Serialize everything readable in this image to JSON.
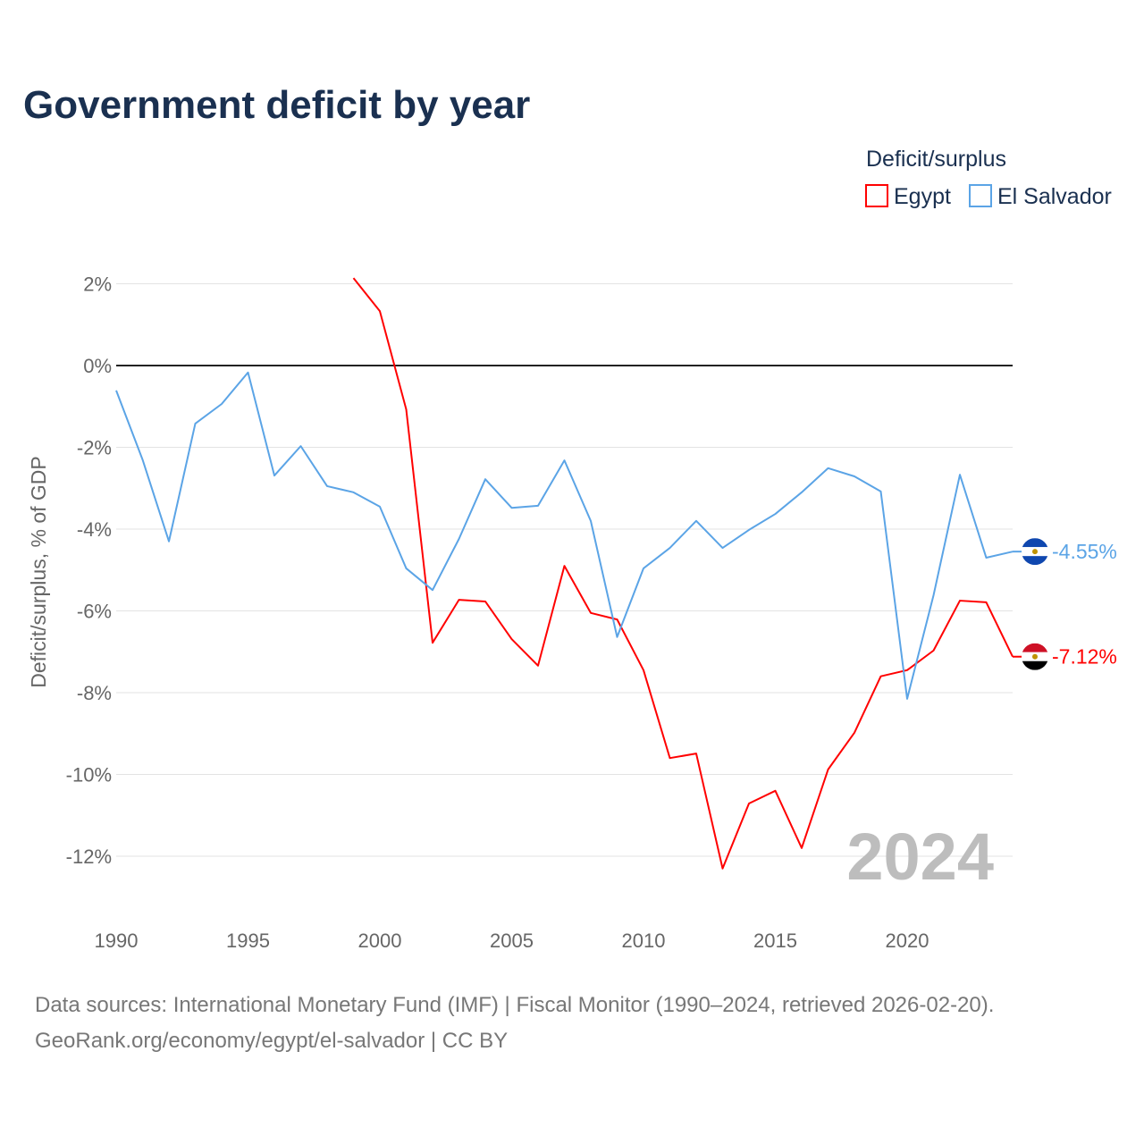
{
  "chart_data": {
    "type": "line",
    "title": "Government deficit by year",
    "ylabel": "Deficit/surplus, % of GDP",
    "xlabel": "",
    "legend_title": "Deficit/surplus",
    "legend_position": "top-right",
    "xlim": [
      1990,
      2024
    ],
    "ylim": [
      -13.5,
      2.5
    ],
    "x_ticks": [
      1990,
      1995,
      2000,
      2005,
      2010,
      2015,
      2020
    ],
    "y_ticks": [
      2,
      0,
      -2,
      -4,
      -6,
      -8,
      -10,
      -12
    ],
    "y_tick_labels": [
      "2%",
      "0%",
      "-2%",
      "-4%",
      "-6%",
      "-8%",
      "-10%",
      "-12%"
    ],
    "grid": true,
    "year_watermark": "2024",
    "series": [
      {
        "name": "Egypt",
        "color": "#ff0000",
        "end_label": "-7.12%",
        "x": [
          1999,
          2000,
          2001,
          2002,
          2003,
          2004,
          2005,
          2006,
          2007,
          2008,
          2009,
          2010,
          2011,
          2012,
          2013,
          2014,
          2015,
          2016,
          2017,
          2018,
          2019,
          2020,
          2021,
          2022,
          2023,
          2024
        ],
        "values": [
          2.14,
          1.33,
          -1.07,
          -6.78,
          -5.73,
          -5.77,
          -6.69,
          -7.34,
          -4.9,
          -6.05,
          -6.21,
          -7.45,
          -9.6,
          -9.49,
          -12.3,
          -10.71,
          -10.4,
          -11.8,
          -9.88,
          -8.98,
          -7.6,
          -7.45,
          -6.97,
          -5.75,
          -5.79,
          -7.12
        ]
      },
      {
        "name": "El Salvador",
        "color": "#5ba4e6",
        "end_label": "-4.55%",
        "x": [
          1990,
          1991,
          1992,
          1993,
          1994,
          1995,
          1996,
          1997,
          1998,
          1999,
          2000,
          2001,
          2002,
          2003,
          2004,
          2005,
          2006,
          2007,
          2008,
          2009,
          2010,
          2011,
          2012,
          2013,
          2014,
          2015,
          2016,
          2017,
          2018,
          2019,
          2020,
          2021,
          2022,
          2023,
          2024
        ],
        "values": [
          -0.61,
          -2.3,
          -4.3,
          -1.42,
          -0.94,
          -0.17,
          -2.69,
          -1.97,
          -2.95,
          -3.1,
          -3.45,
          -4.96,
          -5.49,
          -4.24,
          -2.78,
          -3.48,
          -3.43,
          -2.32,
          -3.8,
          -6.64,
          -4.96,
          -4.46,
          -3.8,
          -4.46,
          -4.02,
          -3.63,
          -3.1,
          -2.51,
          -2.71,
          -3.08,
          -8.15,
          -5.62,
          -2.67,
          -4.7,
          -4.55
        ]
      }
    ]
  },
  "footer": {
    "sources": "Data sources: International Monetary Fund (IMF) | Fiscal Monitor (1990–2024, retrieved 2026-02-20).",
    "credit": "GeoRank.org/economy/egypt/el-salvador | CC BY"
  }
}
